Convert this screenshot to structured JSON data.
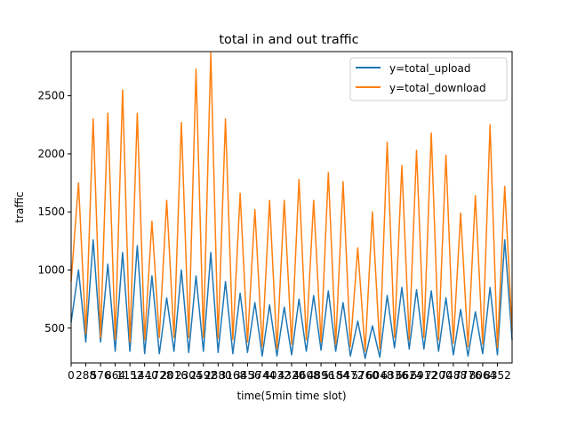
{
  "chart_data": {
    "type": "line",
    "title": "total in and out traffic",
    "xlabel": "time(5min time slot)",
    "ylabel": "traffic",
    "xlim": [
      0,
      8640
    ],
    "ylim": [
      200,
      2880
    ],
    "grid": false,
    "legend_position": "top-right",
    "x_ticks": [
      0,
      288,
      576,
      864,
      1152,
      1440,
      1728,
      2016,
      2304,
      2592,
      2880,
      3168,
      3456,
      3744,
      4032,
      4320,
      4608,
      4896,
      5184,
      5472,
      5760,
      6048,
      6336,
      6624,
      6912,
      7200,
      7488,
      7776,
      8064,
      8352
    ],
    "x_tick_labels": [
      "0",
      "288",
      "576",
      "864",
      "1152",
      "1440",
      "1728",
      "2016",
      "2304",
      "2592",
      "2880",
      "3168",
      "3456",
      "3744",
      "4032",
      "4320",
      "4608",
      "4896",
      "5184",
      "5472",
      "5760",
      "6048",
      "6336",
      "6624",
      "6912",
      "7200",
      "7488",
      "7776",
      "8064",
      "8352"
    ],
    "y_ticks": [
      500,
      1000,
      1500,
      2000,
      2500
    ],
    "y_tick_labels": [
      "500",
      "1000",
      "1500",
      "2000",
      "2500"
    ],
    "series": [
      {
        "name": "y=total_upload",
        "color": "#1f77b4",
        "x": [
          0,
          144,
          288,
          432,
          576,
          720,
          864,
          1008,
          1152,
          1296,
          1440,
          1584,
          1728,
          1872,
          2016,
          2160,
          2304,
          2448,
          2592,
          2736,
          2880,
          3024,
          3168,
          3312,
          3456,
          3600,
          3744,
          3888,
          4032,
          4176,
          4320,
          4464,
          4608,
          4752,
          4896,
          5040,
          5184,
          5328,
          5472,
          5616,
          5760,
          5904,
          6048,
          6192,
          6336,
          6480,
          6624,
          6768,
          6912,
          7056,
          7200,
          7344,
          7488,
          7632,
          7776,
          7920,
          8064,
          8208,
          8352,
          8496,
          8640
        ],
        "y": [
          550,
          1000,
          380,
          1260,
          380,
          1050,
          300,
          1150,
          300,
          1210,
          280,
          950,
          280,
          760,
          300,
          1000,
          290,
          950,
          300,
          1150,
          290,
          900,
          280,
          800,
          290,
          720,
          260,
          700,
          260,
          680,
          270,
          750,
          300,
          780,
          310,
          820,
          300,
          720,
          260,
          560,
          240,
          520,
          250,
          780,
          330,
          850,
          320,
          830,
          320,
          820,
          300,
          760,
          270,
          660,
          260,
          640,
          280,
          850,
          270,
          1260,
          400
        ]
      },
      {
        "name": "y=total_download",
        "color": "#ff7f0e",
        "x": [
          0,
          144,
          288,
          432,
          576,
          720,
          864,
          1008,
          1152,
          1296,
          1440,
          1584,
          1728,
          1872,
          2016,
          2160,
          2304,
          2448,
          2592,
          2736,
          2880,
          3024,
          3168,
          3312,
          3456,
          3600,
          3744,
          3888,
          4032,
          4176,
          4320,
          4464,
          4608,
          4752,
          4896,
          5040,
          5184,
          5328,
          5472,
          5616,
          5760,
          5904,
          6048,
          6192,
          6336,
          6480,
          6624,
          6768,
          6912,
          7056,
          7200,
          7344,
          7488,
          7632,
          7776,
          7920,
          8064,
          8208,
          8352,
          8496,
          8640
        ],
        "y": [
          900,
          1750,
          450,
          2300,
          420,
          2350,
          400,
          2550,
          380,
          2350,
          400,
          1420,
          420,
          1600,
          420,
          2270,
          420,
          2730,
          420,
          2870,
          410,
          2300,
          400,
          1660,
          380,
          1520,
          340,
          1600,
          320,
          1600,
          360,
          1780,
          400,
          1600,
          380,
          1840,
          360,
          1760,
          340,
          1190,
          300,
          1500,
          320,
          2100,
          420,
          1900,
          400,
          2030,
          420,
          2180,
          400,
          1990,
          370,
          1490,
          340,
          1640,
          360,
          2250,
          330,
          1720,
          480
        ]
      }
    ]
  }
}
